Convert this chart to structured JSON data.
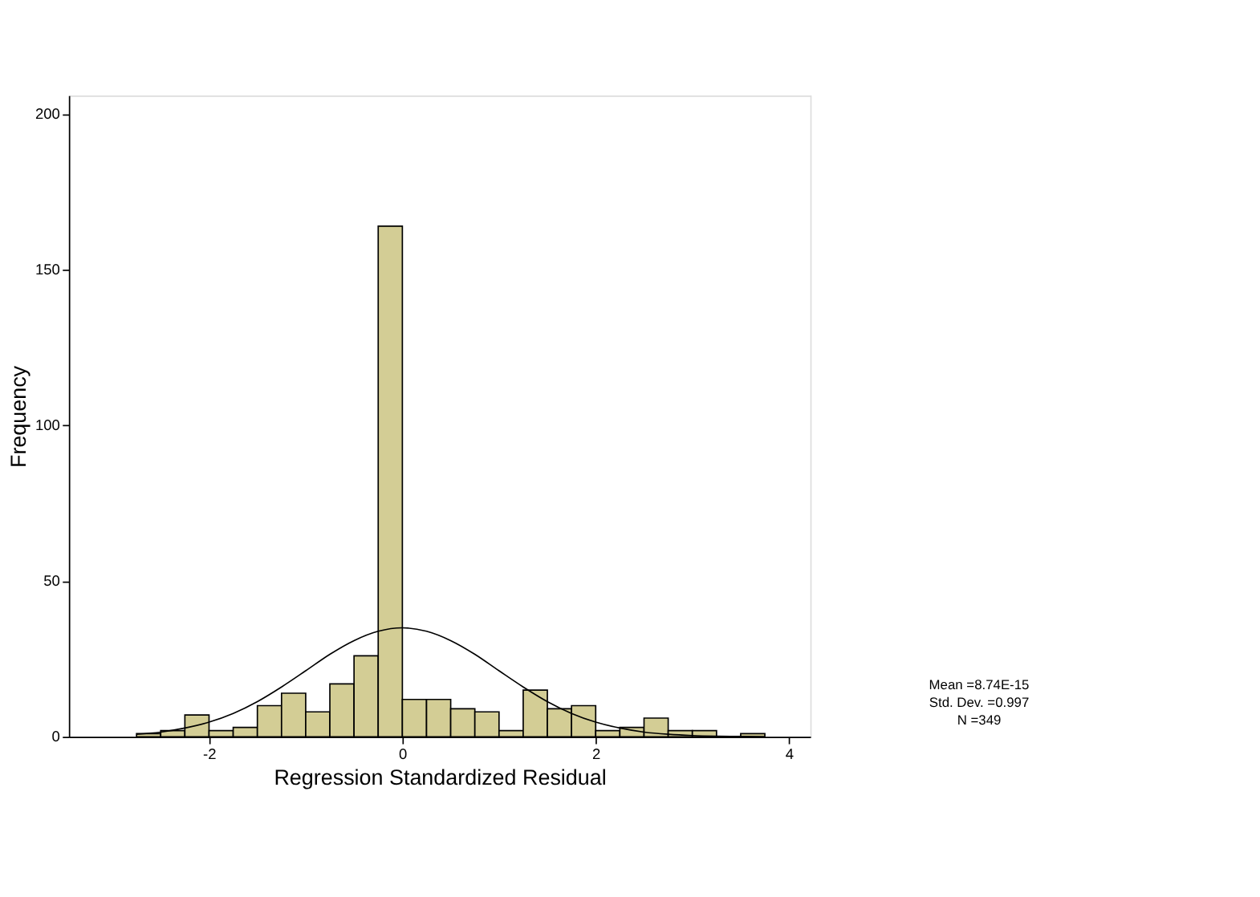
{
  "chart_data": {
    "type": "histogram",
    "xlabel": "Regression Standardized Residual",
    "ylabel": "Frequency",
    "bins": [
      -2.75,
      -2.5,
      -2.25,
      -2,
      -1.75,
      -1.5,
      -1.25,
      -1,
      -0.75,
      -0.5,
      -0.25,
      0,
      0.25,
      0.5,
      0.75,
      1,
      1.25,
      1.5,
      1.75,
      2,
      2.25,
      2.5,
      2.75,
      3,
      3.25,
      3.5,
      3.75
    ],
    "values": [
      1,
      2,
      7,
      2,
      3,
      10,
      14,
      8,
      17,
      26,
      164,
      12,
      12,
      9,
      8,
      2,
      15,
      9,
      10,
      2,
      3,
      6,
      2,
      2,
      0,
      1
    ],
    "color": "#d3cd95",
    "series": [
      {
        "type": "line",
        "color": "#000000",
        "x": [
          -2.75,
          -2.5,
          -2.25,
          -2,
          -1.75,
          -1.5,
          -1.25,
          -1,
          -0.75,
          -0.5,
          -0.25,
          0,
          0.25,
          0.5,
          0.75,
          1,
          1.25,
          1.5,
          1.75,
          2,
          2.25,
          2.5,
          2.75,
          3,
          3.25,
          3.5,
          3.75
        ],
        "values": [
          0.8,
          1.5,
          2.8,
          4.7,
          7.5,
          11.3,
          16,
          21.2,
          26.5,
          30.9,
          33.9,
          35,
          33.9,
          30.9,
          26.5,
          21.2,
          16,
          11.3,
          7.5,
          4.7,
          2.8,
          1.5,
          0.8,
          0.4,
          0.2,
          0.1,
          0
        ]
      }
    ],
    "xlim": [
      -3.45,
      4.22
    ],
    "xticks": [
      -2,
      0,
      2,
      4
    ],
    "ylim": [
      0,
      206
    ],
    "yticks": [
      0,
      50,
      100,
      150,
      200
    ],
    "grid": false,
    "legend": false,
    "annotations": [
      "Mean =8.74E-15",
      "Std. Dev. =0.997",
      "N =349"
    ]
  }
}
